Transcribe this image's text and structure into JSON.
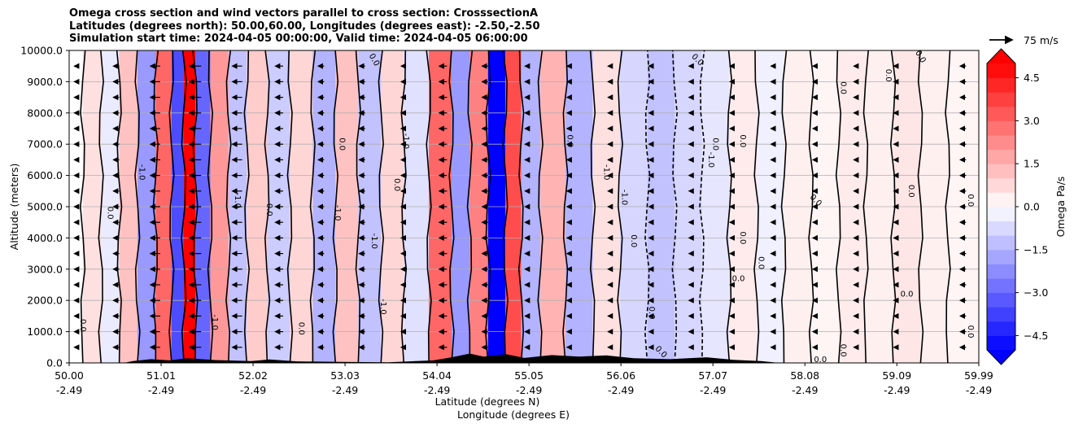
{
  "title_lines": [
    "Omega cross section and wind vectors parallel to cross section: CrosssectionA",
    "Latitudes (degrees north): 50.00,60.00, Longitudes (degrees east): -2.50,-2.50",
    "Simulation start time: 2024-04-05 00:00:00, Valid time: 2024-04-05 06:00:00"
  ],
  "quiver_key": {
    "label": "75 m/s"
  },
  "chart_data": {
    "type": "heatmap",
    "ylabel": "Altitude (meters)",
    "xlabel_lines": [
      "Latitude (degrees N)",
      "Longitude (degrees E)"
    ],
    "x_ticks": [
      {
        "lat": "50.00",
        "lon": "-2.49"
      },
      {
        "lat": "51.01",
        "lon": "-2.49"
      },
      {
        "lat": "52.02",
        "lon": "-2.49"
      },
      {
        "lat": "53.03",
        "lon": "-2.49"
      },
      {
        "lat": "54.04",
        "lon": "-2.49"
      },
      {
        "lat": "55.05",
        "lon": "-2.49"
      },
      {
        "lat": "56.06",
        "lon": "-2.49"
      },
      {
        "lat": "57.07",
        "lon": "-2.49"
      },
      {
        "lat": "58.08",
        "lon": "-2.49"
      },
      {
        "lat": "59.09",
        "lon": "-2.49"
      },
      {
        "lat": "59.99",
        "lon": "-2.49"
      }
    ],
    "y_ticks": [
      "0.0",
      "1000.0",
      "2000.0",
      "3000.0",
      "4000.0",
      "5000.0",
      "6000.0",
      "7000.0",
      "8000.0",
      "9000.0",
      "10000.0"
    ],
    "xlim": [
      50.0,
      59.99
    ],
    "ylim": [
      0,
      10000
    ],
    "grid": "horizontal",
    "colorbar": {
      "label": "Omega Pa/s",
      "range": [
        -5.0,
        5.0
      ],
      "ticks": [
        "4.5",
        "3.0",
        "1.5",
        "0.0",
        "−1.5",
        "−3.0",
        "−4.5"
      ],
      "extend": "both",
      "colormap": "bwr",
      "colors": {
        "low": "#0000ff",
        "mid": "#ffffff",
        "high": "#ff0000"
      }
    },
    "omega_bands": [
      {
        "lat": 50.05,
        "omega": 0.0
      },
      {
        "lat": 50.25,
        "omega": 0.6
      },
      {
        "lat": 50.45,
        "omega": -0.4
      },
      {
        "lat": 50.65,
        "omega": 1.2
      },
      {
        "lat": 50.85,
        "omega": -2.0
      },
      {
        "lat": 51.05,
        "omega": 3.0
      },
      {
        "lat": 51.2,
        "omega": -3.5
      },
      {
        "lat": 51.32,
        "omega": 5.0
      },
      {
        "lat": 51.45,
        "omega": -3.0
      },
      {
        "lat": 51.65,
        "omega": 2.0
      },
      {
        "lat": 51.85,
        "omega": -1.2
      },
      {
        "lat": 52.05,
        "omega": 1.0
      },
      {
        "lat": 52.3,
        "omega": -1.0
      },
      {
        "lat": 52.55,
        "omega": 0.8
      },
      {
        "lat": 52.8,
        "omega": -1.5
      },
      {
        "lat": 53.05,
        "omega": 1.2
      },
      {
        "lat": 53.3,
        "omega": -1.2
      },
      {
        "lat": 53.55,
        "omega": 0.8
      },
      {
        "lat": 53.8,
        "omega": -0.6
      },
      {
        "lat": 54.1,
        "omega": 3.0
      },
      {
        "lat": 54.3,
        "omega": -2.0
      },
      {
        "lat": 54.5,
        "omega": 2.5
      },
      {
        "lat": 54.7,
        "omega": -5.0
      },
      {
        "lat": 54.88,
        "omega": 3.5
      },
      {
        "lat": 55.05,
        "omega": -1.5
      },
      {
        "lat": 55.3,
        "omega": 1.5
      },
      {
        "lat": 55.6,
        "omega": -1.5
      },
      {
        "lat": 55.9,
        "omega": 0.6
      },
      {
        "lat": 56.2,
        "omega": -0.8
      },
      {
        "lat": 56.5,
        "omega": -1.2
      },
      {
        "lat": 56.8,
        "omega": -0.8
      },
      {
        "lat": 57.1,
        "omega": -0.5
      },
      {
        "lat": 57.4,
        "omega": 0.4
      },
      {
        "lat": 57.7,
        "omega": -0.3
      },
      {
        "lat": 58.0,
        "omega": 0.3
      },
      {
        "lat": 58.3,
        "omega": 0.2
      },
      {
        "lat": 58.6,
        "omega": 0.4
      },
      {
        "lat": 58.9,
        "omega": 0.3
      },
      {
        "lat": 59.2,
        "omega": 0.5
      },
      {
        "lat": 59.5,
        "omega": 0.3
      },
      {
        "lat": 59.8,
        "omega": 0.2
      }
    ],
    "contour_labels": [
      {
        "text": "0.0",
        "lat": 50.15,
        "alt": 1200,
        "rot": 90
      },
      {
        "text": "0.0",
        "lat": 50.45,
        "alt": 4800,
        "rot": 90
      },
      {
        "text": "-1.0",
        "lat": 50.8,
        "alt": 6100,
        "rot": 90
      },
      {
        "text": "-1.0",
        "lat": 51.6,
        "alt": 1300,
        "rot": 90
      },
      {
        "text": "-1.0",
        "lat": 51.85,
        "alt": 5200,
        "rot": 90
      },
      {
        "text": "0.0",
        "lat": 52.2,
        "alt": 4900,
        "rot": 90
      },
      {
        "text": "0.0",
        "lat": 52.55,
        "alt": 1100,
        "rot": 90
      },
      {
        "text": "0.0",
        "lat": 53.0,
        "alt": 7000,
        "rot": 90
      },
      {
        "text": "-1.0",
        "lat": 52.95,
        "alt": 4800,
        "rot": 90
      },
      {
        "text": "-1.0",
        "lat": 53.35,
        "alt": 3900,
        "rot": 90
      },
      {
        "text": "-1.0",
        "lat": 53.45,
        "alt": 1800,
        "rot": 90
      },
      {
        "text": "0.0",
        "lat": 53.6,
        "alt": 5700,
        "rot": 90
      },
      {
        "text": "-1.0",
        "lat": 53.7,
        "alt": 7100,
        "rot": 90
      },
      {
        "text": "0.0",
        "lat": 53.35,
        "alt": 9700,
        "rot": 60
      },
      {
        "text": "-1.0",
        "lat": 55.9,
        "alt": 6100,
        "rot": 90
      },
      {
        "text": "-1.0",
        "lat": 56.1,
        "alt": 5300,
        "rot": 90
      },
      {
        "text": "0.0",
        "lat": 55.5,
        "alt": 7100,
        "rot": 90
      },
      {
        "text": "0.0",
        "lat": 56.2,
        "alt": 3900,
        "rot": 90
      },
      {
        "text": "0.0",
        "lat": 56.4,
        "alt": 1600,
        "rot": 90
      },
      {
        "text": "0.0",
        "lat": 56.9,
        "alt": 9700,
        "rot": 45
      },
      {
        "text": "-1.0",
        "lat": 57.05,
        "alt": 6500,
        "rot": 90
      },
      {
        "text": "0.0",
        "lat": 57.1,
        "alt": 7000,
        "rot": 90
      },
      {
        "text": "0.0",
        "lat": 57.4,
        "alt": 4000,
        "rot": 90
      },
      {
        "text": "0.0",
        "lat": 57.4,
        "alt": 7100,
        "rot": 90
      },
      {
        "text": "0.0",
        "lat": 57.6,
        "alt": 3200,
        "rot": 90
      },
      {
        "text": "0.0",
        "lat": 57.35,
        "alt": 2700,
        "rot": 0
      },
      {
        "text": "0.0",
        "lat": 58.2,
        "alt": 5200,
        "rot": 45
      },
      {
        "text": "0.0",
        "lat": 58.5,
        "alt": 8800,
        "rot": 90
      },
      {
        "text": "0.0",
        "lat": 59.0,
        "alt": 9200,
        "rot": 90
      },
      {
        "text": "0.0",
        "lat": 59.35,
        "alt": 9800,
        "rot": 60
      },
      {
        "text": "0.0",
        "lat": 59.25,
        "alt": 5500,
        "rot": 90
      },
      {
        "text": "0.0",
        "lat": 59.2,
        "alt": 2200,
        "rot": 0
      },
      {
        "text": "0.0",
        "lat": 59.9,
        "alt": 5200,
        "rot": 90
      },
      {
        "text": "0.0",
        "lat": 59.9,
        "alt": 1000,
        "rot": 90
      },
      {
        "text": "0.0",
        "lat": 58.25,
        "alt": 100,
        "rot": 0
      },
      {
        "text": "0.0",
        "lat": 58.5,
        "alt": 400,
        "rot": 90
      },
      {
        "text": "0.0",
        "lat": 56.5,
        "alt": 350,
        "rot": 45
      }
    ],
    "wind_vectors": {
      "columns": [
        {
          "lat": 50.1,
          "u": -4
        },
        {
          "lat": 50.55,
          "u": -6
        },
        {
          "lat": 51.0,
          "u": -10
        },
        {
          "lat": 51.45,
          "u": -12
        },
        {
          "lat": 51.9,
          "u": -10
        },
        {
          "lat": 52.35,
          "u": -8
        },
        {
          "lat": 52.8,
          "u": -6
        },
        {
          "lat": 53.25,
          "u": -6
        },
        {
          "lat": 53.7,
          "u": -5
        },
        {
          "lat": 54.15,
          "u": -8
        },
        {
          "lat": 54.6,
          "u": -6
        },
        {
          "lat": 55.05,
          "u": -4
        },
        {
          "lat": 55.5,
          "u": -3
        },
        {
          "lat": 55.95,
          "u": -3
        },
        {
          "lat": 56.4,
          "u": -3
        },
        {
          "lat": 56.85,
          "u": -4
        },
        {
          "lat": 57.3,
          "u": -4
        },
        {
          "lat": 57.75,
          "u": -4
        },
        {
          "lat": 58.2,
          "u": -3
        },
        {
          "lat": 58.65,
          "u": -3
        },
        {
          "lat": 59.1,
          "u": -4
        },
        {
          "lat": 59.85,
          "u": -6
        }
      ],
      "altitudes": [
        500,
        1000,
        1500,
        2000,
        2500,
        3000,
        3500,
        4000,
        4500,
        5000,
        5500,
        6000,
        6500,
        7000,
        7500,
        8000,
        8500,
        9000,
        9500
      ]
    },
    "terrain": [
      {
        "lat": 50.0,
        "alt": 0
      },
      {
        "lat": 50.6,
        "alt": 0
      },
      {
        "lat": 50.7,
        "alt": 60
      },
      {
        "lat": 50.9,
        "alt": 120
      },
      {
        "lat": 51.1,
        "alt": 80
      },
      {
        "lat": 51.3,
        "alt": 150
      },
      {
        "lat": 51.6,
        "alt": 90
      },
      {
        "lat": 52.0,
        "alt": 60
      },
      {
        "lat": 52.2,
        "alt": 110
      },
      {
        "lat": 52.5,
        "alt": 50
      },
      {
        "lat": 53.0,
        "alt": 30
      },
      {
        "lat": 53.5,
        "alt": 20
      },
      {
        "lat": 54.0,
        "alt": 80
      },
      {
        "lat": 54.2,
        "alt": 180
      },
      {
        "lat": 54.4,
        "alt": 300
      },
      {
        "lat": 54.55,
        "alt": 200
      },
      {
        "lat": 54.8,
        "alt": 280
      },
      {
        "lat": 55.0,
        "alt": 160
      },
      {
        "lat": 55.3,
        "alt": 250
      },
      {
        "lat": 55.6,
        "alt": 200
      },
      {
        "lat": 55.9,
        "alt": 240
      },
      {
        "lat": 56.2,
        "alt": 150
      },
      {
        "lat": 56.6,
        "alt": 120
      },
      {
        "lat": 57.0,
        "alt": 180
      },
      {
        "lat": 57.3,
        "alt": 100
      },
      {
        "lat": 57.6,
        "alt": 60
      },
      {
        "lat": 57.8,
        "alt": 0
      },
      {
        "lat": 59.99,
        "alt": 0
      }
    ]
  }
}
